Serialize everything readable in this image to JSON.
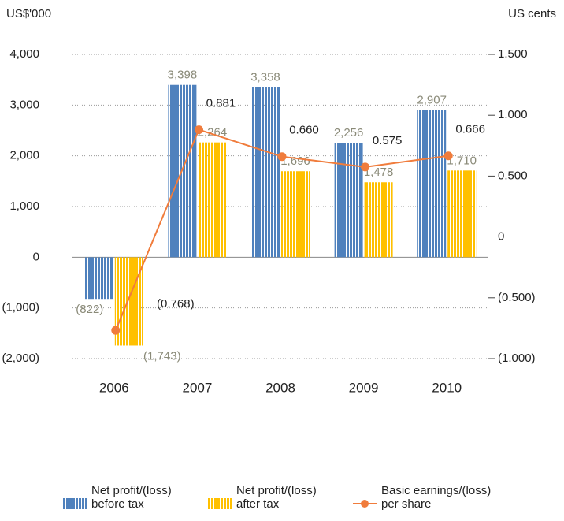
{
  "chart_data": {
    "type": "bar",
    "y_label": "US$'000",
    "y2_label": "US cents",
    "categories": [
      "2006",
      "2007",
      "2008",
      "2009",
      "2010"
    ],
    "series": [
      {
        "name": "Net profit/(loss) before tax",
        "color": "#4f81bd",
        "type": "bar",
        "values": [
          -822,
          3398,
          3358,
          2256,
          2907
        ],
        "value_labels": [
          "(822)",
          "3,398",
          "3,358",
          "2,256",
          "2,907"
        ]
      },
      {
        "name": "Net profit/(loss) after tax",
        "color": "#ffc000",
        "type": "bar",
        "values": [
          -1743,
          2264,
          1696,
          1478,
          1710
        ],
        "value_labels": [
          "(1,743)",
          "2,264",
          "1,696",
          "1,478",
          "1,710"
        ]
      },
      {
        "name": "Basic earnings/(loss) per share",
        "color": "#f07c3c",
        "type": "line",
        "axis": "y2",
        "values": [
          -0.768,
          0.881,
          0.66,
          0.575,
          0.666
        ],
        "value_labels": [
          "(0.768)",
          "0.881",
          "0.660",
          "0.575",
          "0.666"
        ]
      }
    ],
    "ylim": [
      -2000,
      4000
    ],
    "yticks": [
      {
        "value": 4000,
        "label": "4,000"
      },
      {
        "value": 3000,
        "label": "3,000"
      },
      {
        "value": 2000,
        "label": "2,000"
      },
      {
        "value": 1000,
        "label": "1,000"
      },
      0,
      {
        "value": -1000,
        "label": "(1,000)"
      },
      {
        "value": -2000,
        "label": "(2,000)"
      }
    ],
    "y2lim": [
      -1,
      1.5
    ],
    "y2ticks": [
      {
        "value": 1.5,
        "label": "1.500"
      },
      {
        "value": 1,
        "label": "1.000"
      },
      {
        "value": 0.5,
        "label": "0.500"
      },
      0,
      {
        "value": -0.5,
        "label": "(0.500)"
      },
      {
        "value": -1,
        "label": "(1.000)"
      }
    ],
    "grid": true,
    "legend": "bottom"
  }
}
